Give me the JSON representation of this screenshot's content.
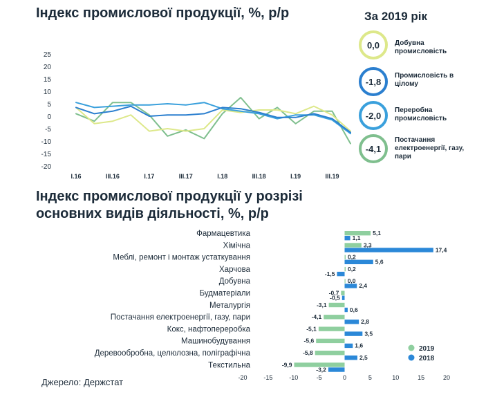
{
  "colors": {
    "mining": "#dde88a",
    "industry": "#2b7fcf",
    "processing": "#3aa0dc",
    "energy": "#7fbf8e",
    "bar2019": "#8fcf9f",
    "bar2018": "#2b88d8"
  },
  "chart_data": [
    {
      "type": "line",
      "title": "Індекс промислової продукції, %, р/р",
      "ylim": [
        -20,
        25
      ],
      "y_ticks": [
        "25",
        "20",
        "15",
        "10",
        "5",
        "0",
        "-5",
        "-10",
        "-15",
        "-20"
      ],
      "x": [
        "I.16",
        "II.16",
        "III.16",
        "IV.16",
        "I.17",
        "II.17",
        "III.17",
        "IV.17",
        "I.18",
        "II.18",
        "III.18",
        "IV.18",
        "I.19",
        "II.19",
        "III.19",
        "IV.19"
      ],
      "x_tick_labels": [
        "I.16",
        "III.16",
        "I.17",
        "III.17",
        "I.18",
        "III.18",
        "I.19",
        "III.19"
      ],
      "x_tick_index": [
        0,
        2,
        4,
        6,
        8,
        10,
        12,
        14
      ],
      "legend_title": "За 2019 рік",
      "series": [
        {
          "name": "Добувна промисловість",
          "color_key": "mining",
          "summary": "0,0",
          "values": [
            3.5,
            -3,
            -2,
            0.5,
            -6,
            -5,
            -6,
            -5,
            2.5,
            1.5,
            2.5,
            2.5,
            1,
            4,
            0.5,
            -6
          ]
        },
        {
          "name": "Промисловість в цілому",
          "color_key": "industry",
          "summary": "-1,8",
          "values": [
            3.5,
            1,
            2,
            4,
            0,
            0.5,
            0.5,
            1,
            3.5,
            3,
            1.5,
            -0.5,
            -0.5,
            1,
            -1,
            -6.5
          ]
        },
        {
          "name": "Переробна промисловість",
          "color_key": "processing",
          "summary": "-2,0",
          "values": [
            5.5,
            3.5,
            4,
            4.5,
            4.5,
            5,
            4.5,
            5.5,
            3,
            2,
            1,
            -1,
            0.5,
            0.5,
            -1.5,
            -7
          ]
        },
        {
          "name": "Постачання електроенергії, газу, пари",
          "color_key": "energy",
          "summary": "-4,1",
          "values": [
            1,
            -2,
            5.5,
            5.5,
            0.5,
            -8,
            -5.5,
            -9,
            1,
            7.5,
            -1,
            3.5,
            -3,
            2,
            2,
            -11
          ]
        }
      ]
    },
    {
      "type": "bar",
      "orientation": "horizontal",
      "title": "Індекс промислової продукції у розрізі основних видів діяльності, %, р/р",
      "xlim": [
        -20,
        20
      ],
      "x_ticks": [
        "-20",
        "-15",
        "-10",
        "-5",
        "0",
        "5",
        "10",
        "15",
        "20"
      ],
      "categories": [
        "Фармацевтика",
        "Хімічна",
        "Меблі, ремонт і монтаж устаткування",
        "Харчова",
        "Добувна",
        "Будматеріали",
        "Металургія",
        "Постачання електроенергії, газу, пари",
        "Кокс, нафтопереробка",
        "Машинобудування",
        "Деревообробна, целюлозна, поліграфічна",
        "Текстильна"
      ],
      "series": [
        {
          "name": "2019",
          "color_key": "bar2019",
          "values": [
            5.1,
            3.3,
            0.2,
            0.2,
            0.0,
            -0.7,
            -3.1,
            -4.1,
            -5.1,
            -5.6,
            -5.8,
            -9.9
          ],
          "labels": [
            "5,1",
            "3,3",
            "0,2",
            "0,2",
            "0,0",
            "-0,7",
            "-3,1",
            "-4,1",
            "-5,1",
            "-5,6",
            "-5,8",
            "-9,9"
          ]
        },
        {
          "name": "2018",
          "color_key": "bar2018",
          "values": [
            1.1,
            17.4,
            5.6,
            -1.5,
            2.4,
            -0.5,
            0.6,
            2.8,
            3.5,
            1.6,
            2.5,
            -3.2
          ],
          "labels": [
            "1,1",
            "17,4",
            "5,6",
            "-1,5",
            "2,4",
            "-0,5",
            "0,6",
            "2,8",
            "3,5",
            "1,6",
            "2,5",
            "-3,2"
          ]
        }
      ]
    }
  ],
  "source": "Джерело: Держстат"
}
